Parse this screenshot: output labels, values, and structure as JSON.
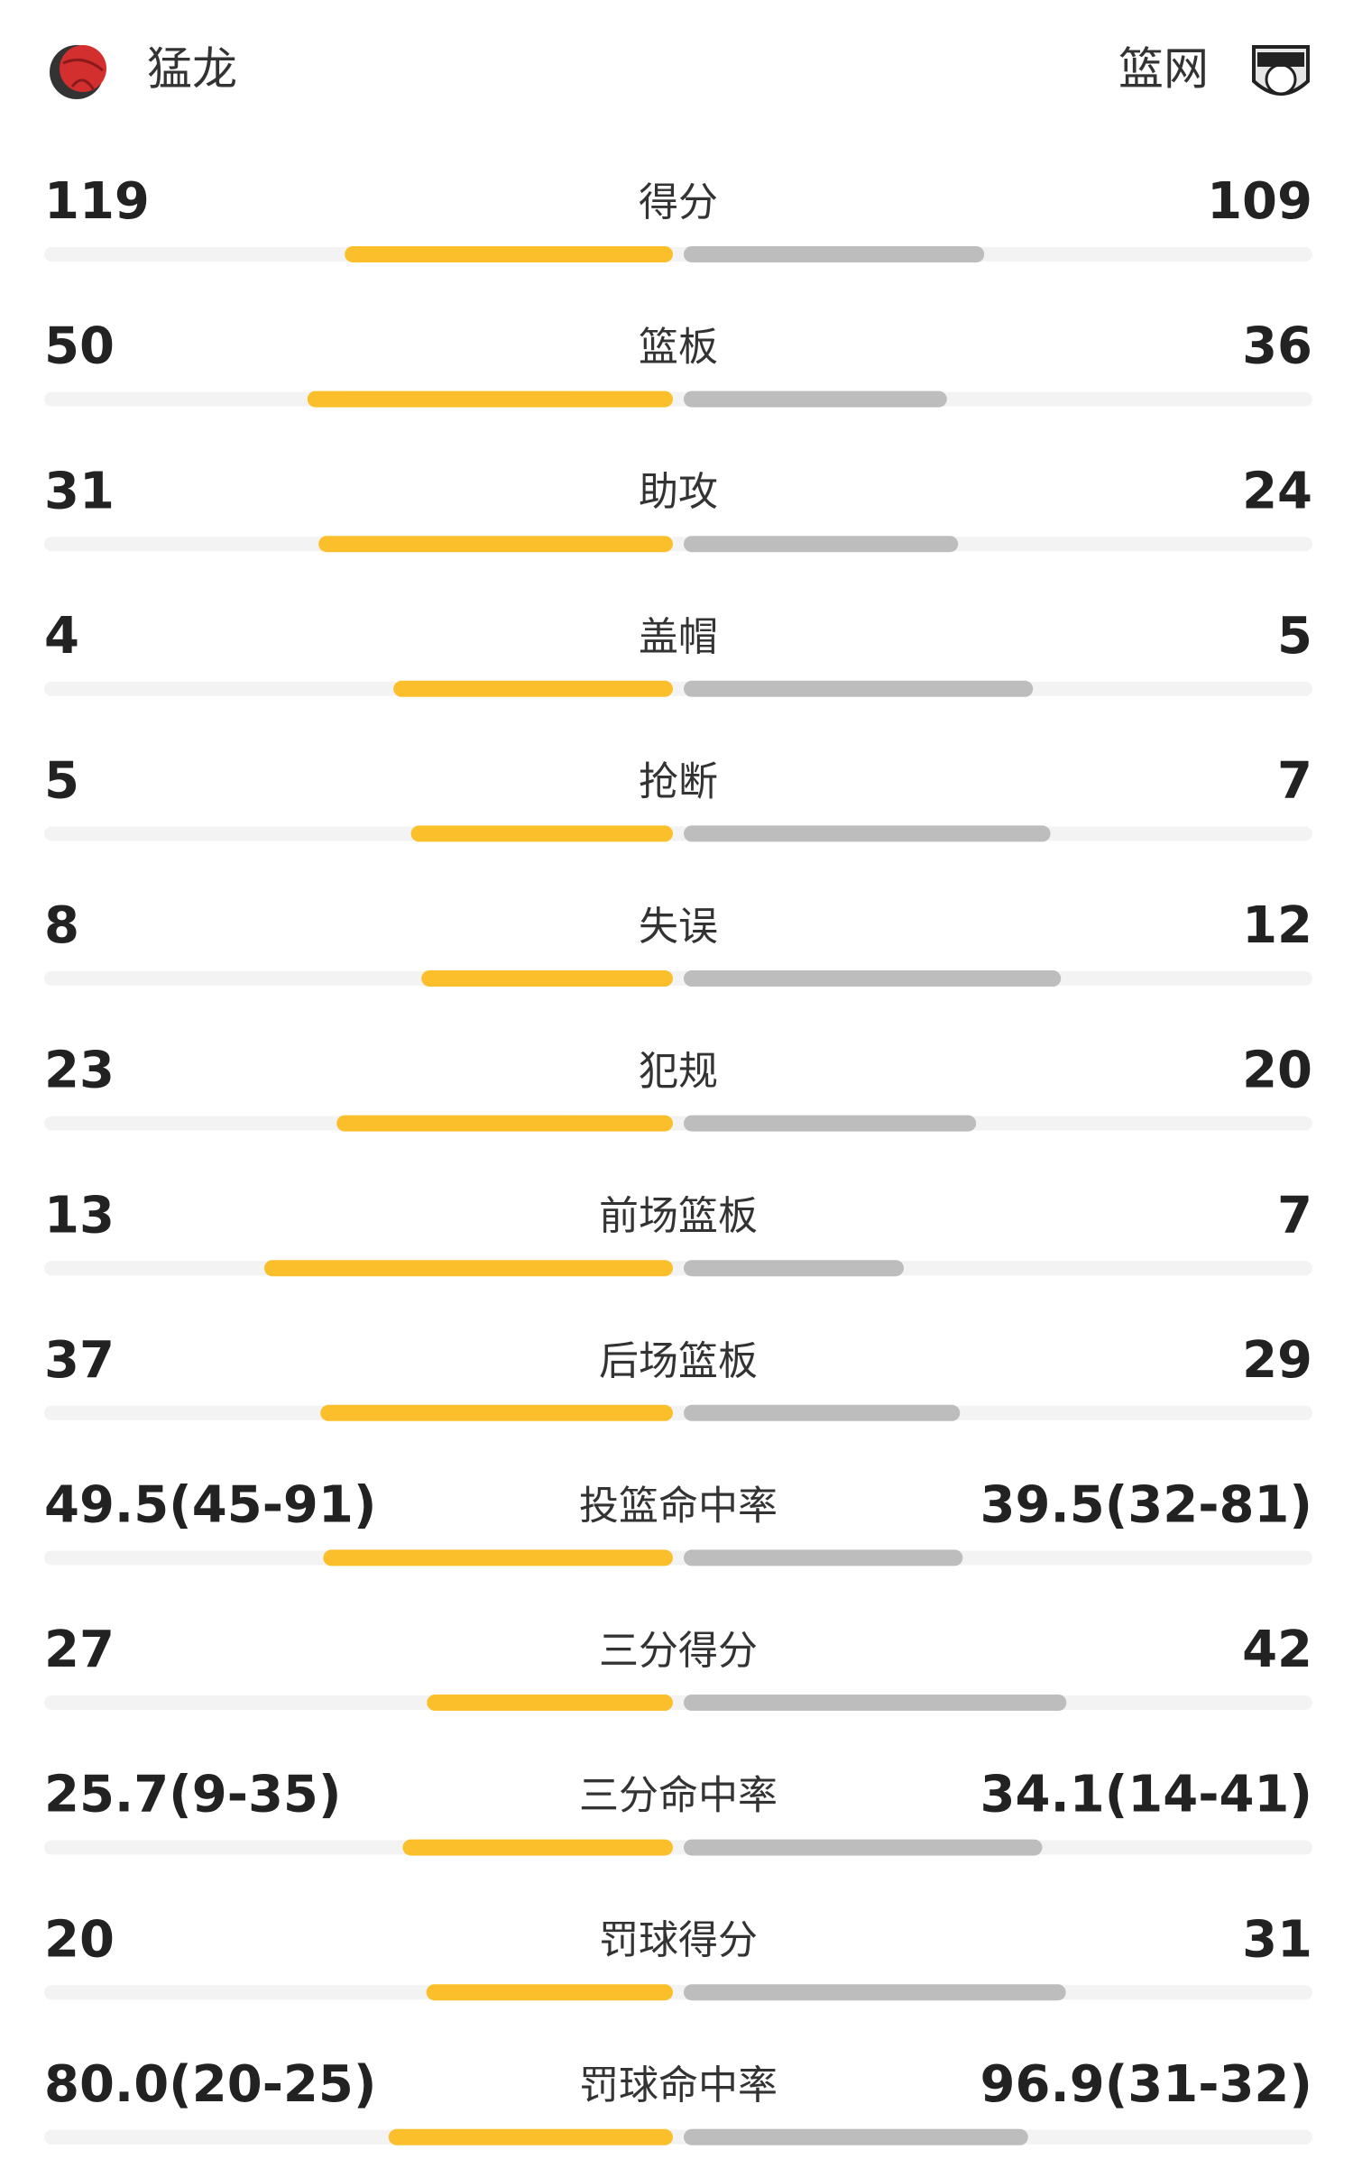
{
  "header": {
    "home": "猛龙",
    "away": "篮网"
  },
  "stats": [
    {
      "label": "得分",
      "home": 119,
      "away": 109
    },
    {
      "label": "篮板",
      "home": 50,
      "away": 36
    },
    {
      "label": "助攻",
      "home": 31,
      "away": 24
    },
    {
      "label": "盖帽",
      "home": 4,
      "away": 5
    },
    {
      "label": "抢断",
      "home": 5,
      "away": 7
    },
    {
      "label": "失误",
      "home": 8,
      "away": 12
    },
    {
      "label": "犯规",
      "home": 23,
      "away": 20
    },
    {
      "label": "前场篮板",
      "home": 13,
      "away": 7
    },
    {
      "label": "后场篮板",
      "home": 37,
      "away": 29
    },
    {
      "label": "投篮命中率",
      "home": 49.5,
      "away": 39.5,
      "home_label": "49.5(45-91)",
      "away_label": "39.5(32-81)"
    },
    {
      "label": "三分得分",
      "home": 27,
      "away": 42
    },
    {
      "label": "三分命中率",
      "home": 25.7,
      "away": 34.1,
      "home_label": "25.7(9-35)",
      "away_label": "34.1(14-41)"
    },
    {
      "label": "罚球得分",
      "home": 20,
      "away": 31
    },
    {
      "label": "罚球命中率",
      "home": 80.0,
      "away": 96.9,
      "home_label": "80.0(20-25)",
      "away_label": "96.9(31-32)"
    }
  ]
}
